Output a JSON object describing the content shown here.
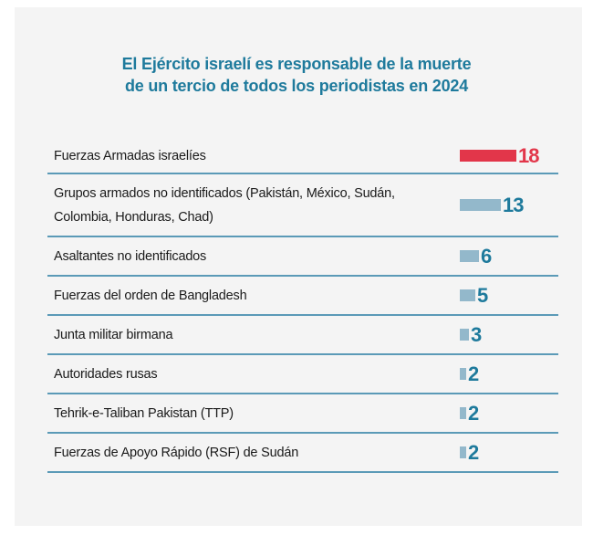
{
  "chart_data": {
    "type": "bar",
    "title": [
      "El Ejército israelí es responsable de la muerte",
      "de un tercio de todos los periodistas en 2024"
    ],
    "categories": [
      "Fuerzas Armadas israelíes",
      "Grupos armados no identificados (Pakistán, México, Sudán, Colombia, Honduras, Chad)",
      "Asaltantes no identificados",
      "Fuerzas del orden de Bangladesh",
      "Junta militar birmana",
      "Autoridades rusas",
      "Tehrik-e-Taliban Pakistan (TTP)",
      "Fuerzas de Apoyo Rápido (RSF) de Sudán"
    ],
    "values": [
      18,
      13,
      6,
      5,
      3,
      2,
      2,
      2
    ],
    "highlight_color": "#e2364a",
    "bar_color": "#93b8cb",
    "value_color": "#1e7a9c",
    "divider_color": "#5b9ab7",
    "title_color": "#1e7a9c",
    "xlim": [
      0,
      18
    ],
    "grid": false,
    "legend": "none"
  }
}
